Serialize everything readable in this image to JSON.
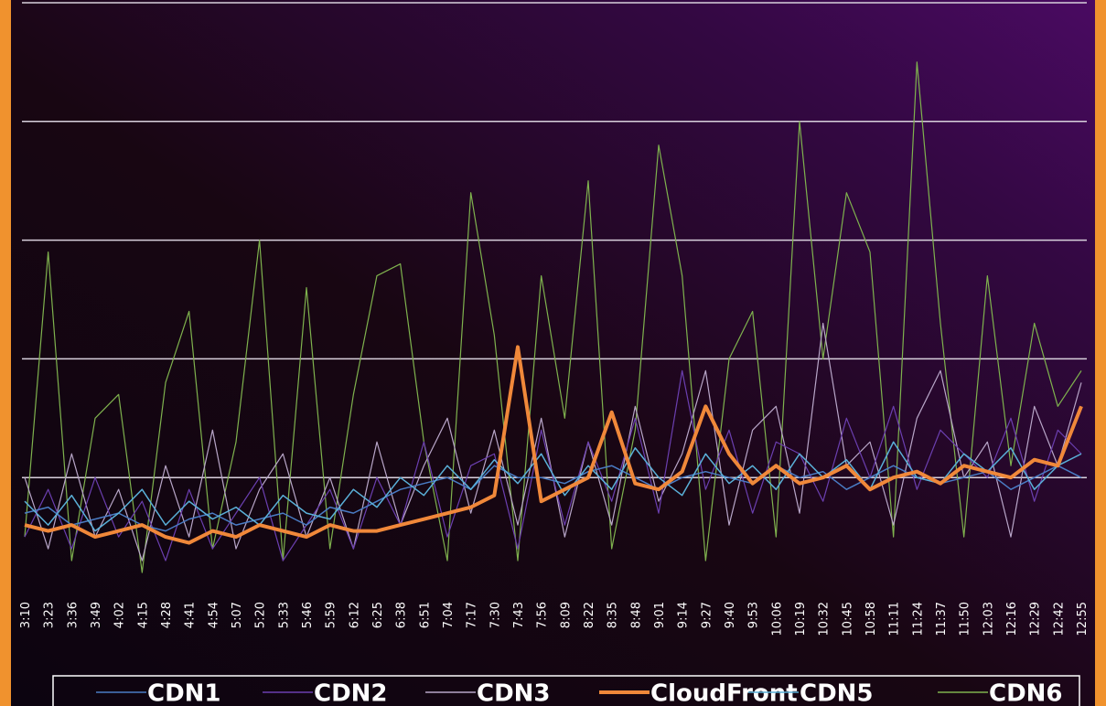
{
  "chart_data": {
    "type": "line",
    "categories": [
      "3:10",
      "3:23",
      "3:36",
      "3:49",
      "4:02",
      "4:15",
      "4:28",
      "4:41",
      "4:54",
      "5:07",
      "5:20",
      "5:33",
      "5:46",
      "5:59",
      "6:12",
      "6:25",
      "6:38",
      "6:51",
      "7:04",
      "7:17",
      "7:30",
      "7:43",
      "7:56",
      "8:09",
      "8:22",
      "8:35",
      "8:48",
      "9:01",
      "9:14",
      "9:27",
      "9:40",
      "9:53",
      "10:06",
      "10:19",
      "10:32",
      "10:45",
      "10:58",
      "11:11",
      "11:24",
      "11:37",
      "11:50",
      "12:03",
      "12:16",
      "12:29",
      "12:42",
      "12:55"
    ],
    "series": [
      {
        "name": "CDN6",
        "color": "#7fb24e",
        "width": 1.2,
        "values": [
          0.5,
          2.9,
          0.3,
          1.5,
          1.7,
          0.2,
          1.8,
          2.4,
          0.4,
          1.3,
          3.0,
          0.3,
          2.6,
          0.4,
          1.7,
          2.7,
          2.8,
          1.3,
          0.3,
          3.4,
          2.2,
          0.3,
          2.7,
          1.5,
          3.5,
          0.4,
          1.4,
          3.8,
          2.7,
          0.3,
          2.0,
          2.4,
          0.5,
          4.0,
          2.0,
          3.4,
          2.9,
          0.5,
          4.5,
          2.3,
          0.5,
          2.7,
          1.1,
          2.3,
          1.6,
          1.9
        ]
      },
      {
        "name": "CDN3",
        "color": "#b8a6c8",
        "width": 1.2,
        "values": [
          1.0,
          0.4,
          1.2,
          0.5,
          0.9,
          0.3,
          1.1,
          0.5,
          1.4,
          0.4,
          0.9,
          1.2,
          0.5,
          1.0,
          0.4,
          1.3,
          0.6,
          1.1,
          1.5,
          0.7,
          1.4,
          0.6,
          1.5,
          0.5,
          1.3,
          0.6,
          1.6,
          0.8,
          1.2,
          1.9,
          0.6,
          1.4,
          1.6,
          0.7,
          2.3,
          1.1,
          1.3,
          0.6,
          1.5,
          1.9,
          1.0,
          1.3,
          0.5,
          1.6,
          1.1,
          1.8
        ]
      },
      {
        "name": "CDN2",
        "color": "#6b3fb0",
        "width": 1.2,
        "values": [
          0.5,
          0.9,
          0.4,
          1.0,
          0.5,
          0.8,
          0.3,
          0.9,
          0.4,
          0.7,
          1.0,
          0.3,
          0.6,
          0.9,
          0.4,
          1.0,
          0.6,
          1.3,
          0.5,
          1.1,
          1.2,
          0.4,
          1.4,
          0.6,
          1.3,
          0.8,
          1.5,
          0.7,
          1.9,
          0.9,
          1.4,
          0.7,
          1.3,
          1.2,
          0.8,
          1.5,
          1.0,
          1.6,
          0.9,
          1.4,
          1.2,
          1.0,
          1.5,
          0.8,
          1.4,
          1.2
        ]
      },
      {
        "name": "CDN1",
        "color": "#4a7cc4",
        "width": 1.5,
        "values": [
          0.7,
          0.75,
          0.6,
          0.65,
          0.7,
          0.6,
          0.55,
          0.65,
          0.7,
          0.6,
          0.65,
          0.7,
          0.6,
          0.75,
          0.7,
          0.8,
          0.9,
          0.95,
          1.0,
          0.9,
          1.1,
          1.0,
          1.0,
          0.95,
          1.05,
          1.1,
          1.0,
          0.9,
          1.0,
          1.05,
          1.0,
          0.95,
          1.1,
          1.0,
          1.05,
          0.9,
          1.0,
          1.1,
          1.0,
          0.95,
          1.0,
          1.05,
          0.9,
          1.0,
          1.1,
          1.0
        ]
      },
      {
        "name": "CDN5",
        "color": "#5ab0d8",
        "width": 1.5,
        "values": [
          0.8,
          0.6,
          0.85,
          0.55,
          0.7,
          0.9,
          0.6,
          0.8,
          0.65,
          0.75,
          0.6,
          0.85,
          0.7,
          0.65,
          0.9,
          0.75,
          1.0,
          0.85,
          1.1,
          0.9,
          1.15,
          0.95,
          1.2,
          0.85,
          1.1,
          0.9,
          1.25,
          1.0,
          0.85,
          1.2,
          0.95,
          1.1,
          0.9,
          1.2,
          1.0,
          1.15,
          0.9,
          1.3,
          1.0,
          0.95,
          1.2,
          1.05,
          1.25,
          0.9,
          1.1,
          1.2
        ]
      },
      {
        "name": "CloudFront",
        "color": "#f0883a",
        "width": 4,
        "values": [
          0.6,
          0.55,
          0.6,
          0.5,
          0.55,
          0.6,
          0.5,
          0.45,
          0.55,
          0.5,
          0.6,
          0.55,
          0.5,
          0.6,
          0.55,
          0.55,
          0.6,
          0.65,
          0.7,
          0.75,
          0.85,
          2.1,
          0.8,
          0.9,
          1.0,
          1.55,
          0.95,
          0.9,
          1.05,
          1.6,
          1.2,
          0.95,
          1.1,
          0.95,
          1.0,
          1.1,
          0.9,
          1.0,
          1.05,
          0.95,
          1.1,
          1.05,
          1.0,
          1.15,
          1.1,
          1.6
        ]
      }
    ],
    "legend_order": [
      3,
      2,
      1,
      5,
      4,
      0
    ],
    "ylim": [
      0,
      5
    ],
    "yticks": [
      1,
      2,
      3,
      4,
      5
    ],
    "grid": true
  }
}
